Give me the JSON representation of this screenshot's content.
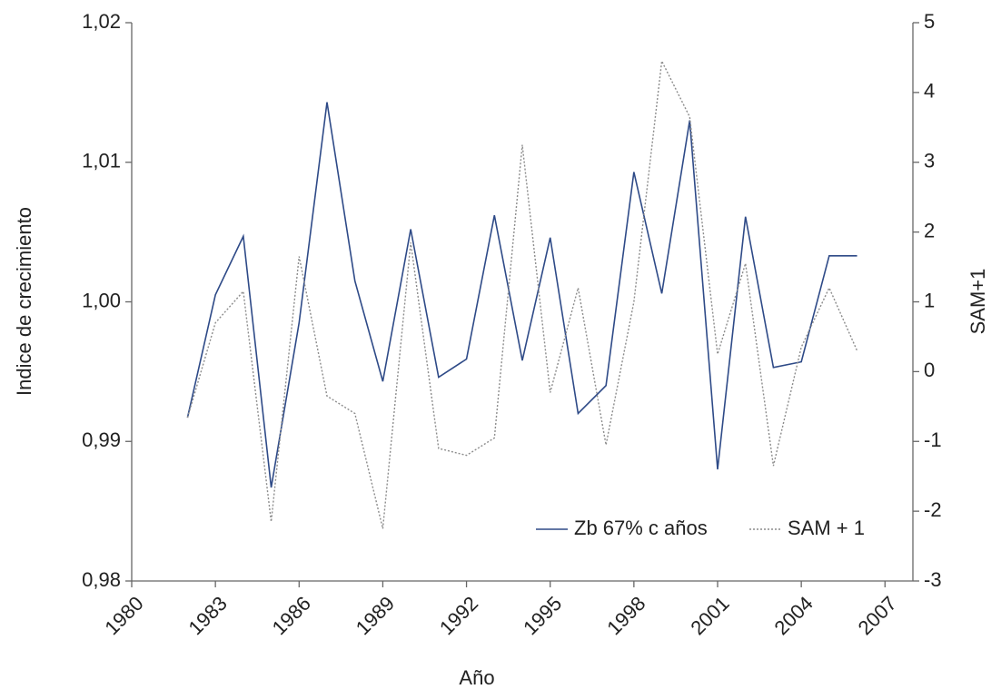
{
  "chart_data": {
    "type": "line",
    "x_label": "Año",
    "y_label": "Indice de crecimiento",
    "y2_label": "SAM+1",
    "x": [
      1982,
      1983,
      1984,
      1985,
      1986,
      1987,
      1988,
      1989,
      1990,
      1991,
      1992,
      1993,
      1994,
      1995,
      1996,
      1997,
      1998,
      1999,
      2000,
      2001,
      2002,
      2003,
      2004,
      2005,
      2006
    ],
    "series": [
      {
        "name": "Zb 67% c años",
        "color": "#2e4a87",
        "style": "solid",
        "values": [
          0.9917,
          1.0005,
          1.0047,
          0.9867,
          0.9985,
          1.0143,
          1.0015,
          0.9943,
          1.0052,
          0.9946,
          0.9959,
          1.0062,
          0.9958,
          1.0046,
          0.992,
          0.994,
          1.0093,
          1.0006,
          1.013,
          0.988,
          1.0061,
          0.9953,
          0.9957,
          1.0033,
          1.0033
        ]
      },
      {
        "name": "SAM + 1",
        "color": "#8c8c8c",
        "style": "dotted",
        "axis": "y2",
        "values": [
          -0.66,
          0.7,
          1.15,
          -2.15,
          1.65,
          -0.35,
          -0.6,
          -2.25,
          1.85,
          -1.1,
          -1.2,
          -0.95,
          3.25,
          -0.3,
          1.2,
          -1.05,
          1.0,
          4.45,
          3.65,
          0.25,
          1.55,
          -1.35,
          0.35,
          1.2,
          0.3
        ]
      }
    ],
    "xlim": [
      1980,
      2008
    ],
    "xticks": [
      1980,
      1983,
      1986,
      1989,
      1992,
      1995,
      1998,
      2001,
      2004,
      2007
    ],
    "ylim": [
      0.98,
      1.02
    ],
    "yticks": [
      {
        "value": 0.98,
        "label": "0,98"
      },
      {
        "value": 0.99,
        "label": "0,99"
      },
      {
        "value": 1.0,
        "label": "1,00"
      },
      {
        "value": 1.01,
        "label": "1,01"
      },
      {
        "value": 1.02,
        "label": "1,02"
      }
    ],
    "y2lim": [
      -3,
      5
    ],
    "y2ticks": [
      -3,
      -2,
      -1,
      0,
      1,
      2,
      3,
      4,
      5
    ],
    "legend": "lower right",
    "grid": false
  }
}
